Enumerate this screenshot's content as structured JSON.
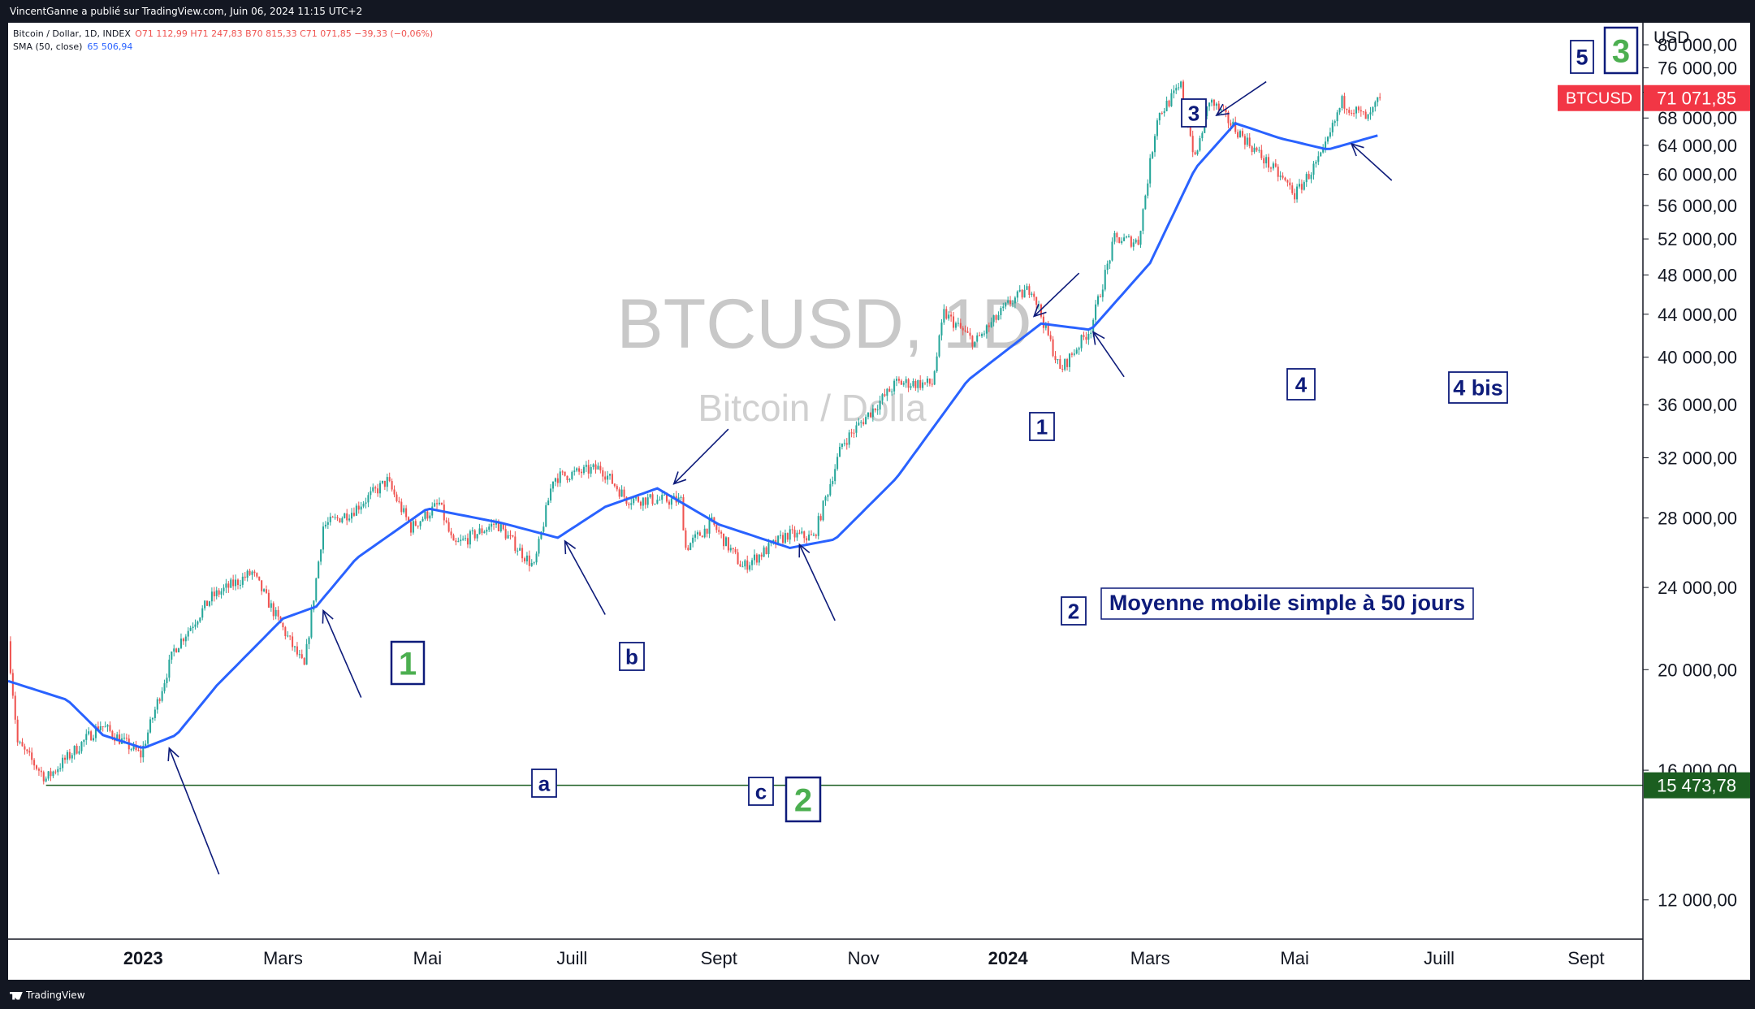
{
  "header": {
    "publisher_line": "VincentGanne a publié sur TradingView.com, Juin 06, 2024 11:15 UTC+2"
  },
  "footer": {
    "brand": "TradingView"
  },
  "legend": {
    "symbol_line": "Bitcoin / Dollar, 1D, INDEX",
    "ohlc": "O71 112,99 H71 247,83 B70 815,33 C71 071,85 −39,33 (−0,06%)",
    "sma_label": "SMA (50, close)",
    "sma_value": "65 506,94"
  },
  "watermark": {
    "symbol": "BTCUSD, 1D",
    "name": "Bitcoin / Dolla"
  },
  "price_axis": {
    "currency": "USD",
    "ticks": [
      "80 000,00",
      "76 000,00",
      "72 000,00",
      "68 000,00",
      "64 000,00",
      "60 000,00",
      "56 000,00",
      "52 000,00",
      "48 000,00",
      "44 000,00",
      "40 000,00",
      "36 000,00",
      "32 000,00",
      "28 000,00",
      "24 000,00",
      "20 000,00",
      "16 000,00",
      "12 000,00"
    ],
    "last_price_label": "BTCUSD",
    "last_price": "71 071,85",
    "support_price": "15 473,78"
  },
  "time_axis": {
    "ticks": [
      "2023",
      "Mars",
      "Mai",
      "Juill",
      "Sept",
      "Nov",
      "2024",
      "Mars",
      "Mai",
      "Juill",
      "Sept"
    ]
  },
  "annotations": {
    "wave_labels": [
      {
        "text": "1",
        "style": "green"
      },
      {
        "text": "b",
        "style": "blue"
      },
      {
        "text": "a",
        "style": "blue"
      },
      {
        "text": "c",
        "style": "blue"
      },
      {
        "text": "2",
        "style": "green"
      },
      {
        "text": "1",
        "style": "blue"
      },
      {
        "text": "2",
        "style": "blue"
      },
      {
        "text": "3",
        "style": "blue"
      },
      {
        "text": "4",
        "style": "blue"
      },
      {
        "text": "4 bis",
        "style": "blue"
      },
      {
        "text": "5",
        "style": "blue"
      },
      {
        "text": "3",
        "style": "green"
      }
    ],
    "sma_note": "Moyenne mobile simple à 50 jours"
  },
  "colors": {
    "background": "#ffffff",
    "frame": "#131722",
    "up": "#26a69a",
    "down": "#ef5350",
    "sma": "#2962ff",
    "support": "#1b5e20",
    "annotation": "#0d1b7a",
    "wave_green": "#4caf50",
    "last_price_bg": "#f23645"
  },
  "chart_data": {
    "type": "candlestick",
    "symbol": "BTCUSD",
    "interval": "1D",
    "y_scale": "log",
    "ylim": [
      11000,
      84000
    ],
    "x_range": [
      "2022-11-05",
      "2024-09-25"
    ],
    "support_level": 15473.78,
    "last_close": 71071.85,
    "price_path": [
      [
        "2022-11-05",
        21300
      ],
      [
        "2022-11-09",
        17000
      ],
      [
        "2022-11-21",
        15700
      ],
      [
        "2022-12-14",
        17700
      ],
      [
        "2022-12-31",
        16550
      ],
      [
        "2023-01-14",
        20900
      ],
      [
        "2023-01-30",
        23500
      ],
      [
        "2023-02-16",
        24800
      ],
      [
        "2023-03-10",
        20100
      ],
      [
        "2023-03-18",
        27500
      ],
      [
        "2023-03-30",
        28400
      ],
      [
        "2023-04-14",
        30400
      ],
      [
        "2023-04-24",
        27400
      ],
      [
        "2023-05-06",
        28900
      ],
      [
        "2023-05-12",
        26300
      ],
      [
        "2023-05-30",
        27700
      ],
      [
        "2023-06-15",
        25100
      ],
      [
        "2023-06-23",
        30600
      ],
      [
        "2023-07-13",
        31300
      ],
      [
        "2023-07-24",
        29200
      ],
      [
        "2023-08-16",
        29100
      ],
      [
        "2023-08-18",
        26200
      ],
      [
        "2023-08-29",
        27700
      ],
      [
        "2023-09-11",
        25100
      ],
      [
        "2023-09-30",
        27000
      ],
      [
        "2023-10-11",
        26800
      ],
      [
        "2023-10-23",
        33000
      ],
      [
        "2023-10-31",
        34600
      ],
      [
        "2023-11-15",
        37800
      ],
      [
        "2023-11-30",
        37700
      ],
      [
        "2023-12-05",
        44100
      ],
      [
        "2023-12-18",
        41300
      ],
      [
        "2024-01-02",
        45200
      ],
      [
        "2024-01-11",
        46700
      ],
      [
        "2024-01-23",
        38800
      ],
      [
        "2024-02-05",
        42700
      ],
      [
        "2024-02-15",
        52000
      ],
      [
        "2024-02-25",
        51700
      ],
      [
        "2024-03-04",
        68200
      ],
      [
        "2024-03-14",
        73000
      ],
      [
        "2024-03-20",
        61900
      ],
      [
        "2024-03-26",
        70800
      ],
      [
        "2024-04-13",
        63800
      ],
      [
        "2024-04-30",
        58000
      ],
      [
        "2024-05-01",
        57300
      ],
      [
        "2024-05-13",
        62800
      ],
      [
        "2024-05-21",
        70500
      ],
      [
        "2024-06-01",
        67800
      ],
      [
        "2024-06-06",
        71071.85
      ]
    ],
    "sma50_path": [
      [
        "2022-11-05",
        19500
      ],
      [
        "2022-11-30",
        18700
      ],
      [
        "2022-12-15",
        17300
      ],
      [
        "2023-01-01",
        16800
      ],
      [
        "2023-01-15",
        17300
      ],
      [
        "2023-02-01",
        19300
      ],
      [
        "2023-03-01",
        22400
      ],
      [
        "2023-03-15",
        23000
      ],
      [
        "2023-04-01",
        25600
      ],
      [
        "2023-05-01",
        28600
      ],
      [
        "2023-06-01",
        27700
      ],
      [
        "2023-06-25",
        26800
      ],
      [
        "2023-07-15",
        28700
      ],
      [
        "2023-08-06",
        29900
      ],
      [
        "2023-09-01",
        27600
      ],
      [
        "2023-10-01",
        26200
      ],
      [
        "2023-10-20",
        26700
      ],
      [
        "2023-11-15",
        30600
      ],
      [
        "2023-12-15",
        38000
      ],
      [
        "2024-01-15",
        43100
      ],
      [
        "2024-02-05",
        42500
      ],
      [
        "2024-03-01",
        49300
      ],
      [
        "2024-03-20",
        60800
      ],
      [
        "2024-04-06",
        67200
      ],
      [
        "2024-04-25",
        65000
      ],
      [
        "2024-05-15",
        63400
      ],
      [
        "2024-06-06",
        65506.94
      ]
    ],
    "arrows": [
      {
        "tip": [
          "2023-01-12",
          16800
        ],
        "tail": [
          "2023-02-02",
          12700
        ]
      },
      {
        "tip": [
          "2023-03-18",
          22800
        ],
        "tail": [
          "2023-04-03",
          18800
        ]
      },
      {
        "tip": [
          "2023-06-28",
          26600
        ],
        "tail": [
          "2023-07-15",
          22600
        ]
      },
      {
        "tip": [
          "2023-08-13",
          30200
        ],
        "tail": [
          "2023-09-05",
          34100
        ]
      },
      {
        "tip": [
          "2023-10-05",
          26400
        ],
        "tail": [
          "2023-10-20",
          22300
        ]
      },
      {
        "tip": [
          "2024-01-12",
          43800
        ],
        "tail": [
          "2024-01-31",
          48200
        ]
      },
      {
        "tip": [
          "2024-02-06",
          42300
        ],
        "tail": [
          "2024-02-19",
          38300
        ]
      },
      {
        "tip": [
          "2024-03-29",
          68400
        ],
        "tail": [
          "2024-04-19",
          73700
        ]
      },
      {
        "tip": [
          "2024-05-25",
          64200
        ],
        "tail": [
          "2024-06-11",
          59200
        ]
      }
    ]
  }
}
